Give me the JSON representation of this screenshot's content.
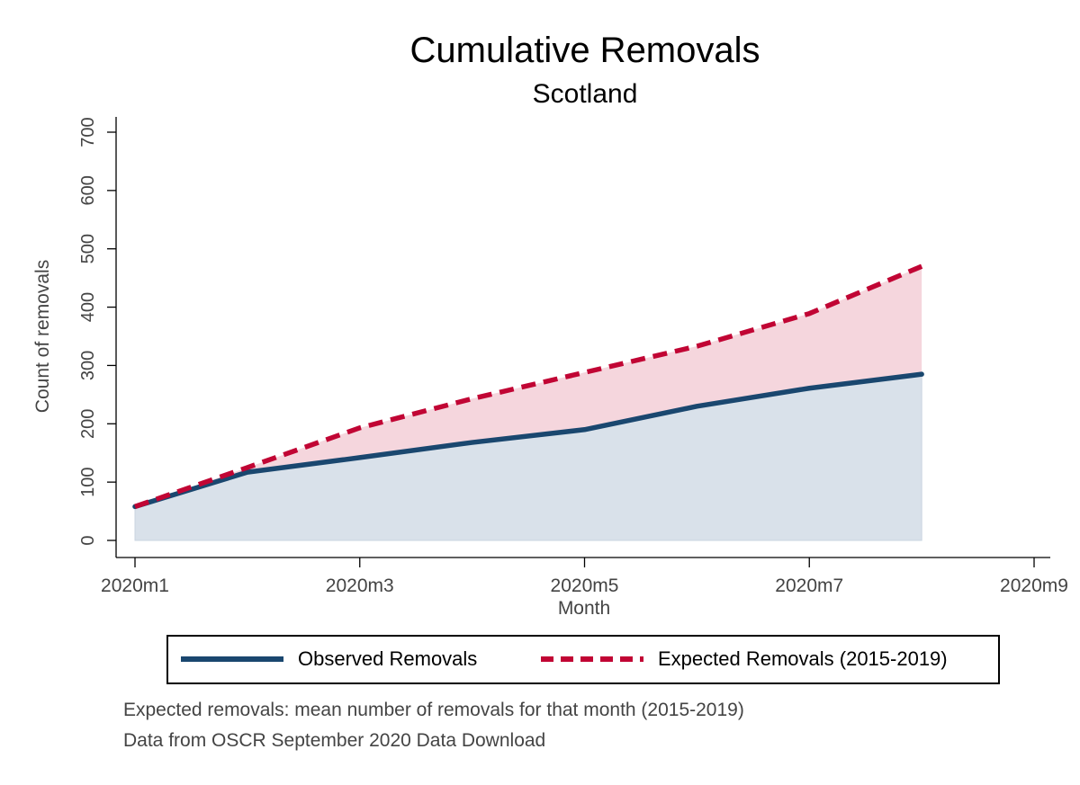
{
  "chart_data": {
    "type": "area",
    "title": "Cumulative Removals",
    "subtitle": "Scotland",
    "xlabel": "Month",
    "ylabel": "Count of removals",
    "x_ticks": [
      "2020m1",
      "2020m3",
      "2020m5",
      "2020m7",
      "2020m9"
    ],
    "x": [
      "2020m1",
      "2020m2",
      "2020m3",
      "2020m4",
      "2020m5",
      "2020m6",
      "2020m7",
      "2020m8"
    ],
    "xlim": [
      "2020m1",
      "2020m9"
    ],
    "y_ticks": [
      0,
      100,
      200,
      300,
      400,
      500,
      600,
      700
    ],
    "ylim": [
      0,
      700
    ],
    "series": [
      {
        "name": "Observed Removals",
        "values": [
          58,
          117,
          142,
          168,
          190,
          230,
          261,
          285
        ],
        "color": "#1a476f",
        "style": "solid"
      },
      {
        "name": "Expected Removals (2015-2019)",
        "values": [
          58,
          125,
          193,
          243,
          288,
          333,
          389,
          470
        ],
        "color": "#c10534",
        "style": "dashed"
      }
    ],
    "fill": {
      "observed": "#d9e1ea",
      "gap": "#f5d6dd"
    },
    "grid": false,
    "legend_position": "bottom"
  },
  "notes": [
    "Expected removals: mean number of removals for that month (2015-2019)",
    "Data from OSCR September 2020 Data Download"
  ]
}
